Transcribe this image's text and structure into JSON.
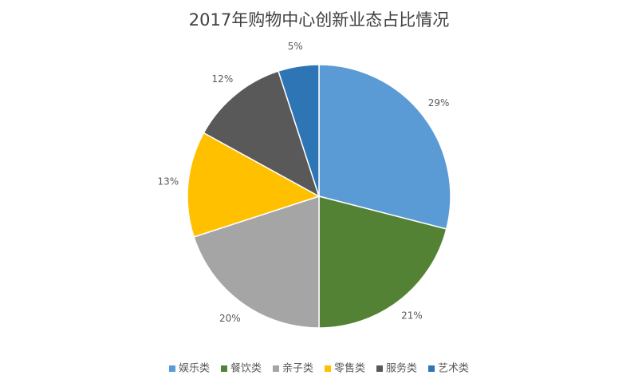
{
  "chart_data": {
    "type": "pie",
    "title": "2017年购物中心创新业态占比情况",
    "categories": [
      "娱乐类",
      "餐饮类",
      "亲子类",
      "零售类",
      "服务类",
      "艺术类"
    ],
    "values": [
      29,
      21,
      20,
      13,
      12,
      5
    ],
    "value_labels": [
      "29%",
      "21%",
      "20%",
      "13%",
      "12%",
      "5%"
    ],
    "colors": [
      "#5b9bd5",
      "#548235",
      "#a5a5a5",
      "#ffc000",
      "#595959",
      "#2e75b6"
    ],
    "legend": "bottom"
  }
}
